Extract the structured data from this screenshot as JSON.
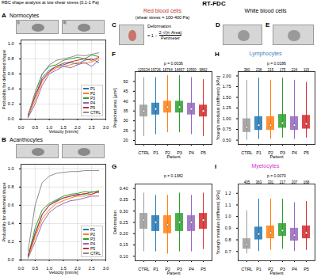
{
  "figure": {
    "left_title": "RBC shape analysis at low shear stress (0.1-1 Pa)",
    "right_title": "RT-FDC",
    "rbc_header": "Red blood cells",
    "shear_note": "(shear stress = 100-400 Pa)",
    "wbc_header": "White blood cells",
    "image_labels": [
      "i)",
      "ii)"
    ],
    "panel_C": {
      "letter": "C",
      "formula": {
        "lhs": "Deformation",
        "prefix": "= 1 −",
        "numerator": "2·√(π·Area)",
        "denominator": "Perimeter"
      }
    },
    "panel_D": {
      "letter": "D"
    },
    "panel_E": {
      "letter": "E"
    }
  },
  "chart_data": [
    {
      "type": "line",
      "panel": "A",
      "title": "Normocytes",
      "x_label": "Velocity [mm/s]",
      "y_label": "Probability for deformed shape",
      "x": [
        0.25,
        0.5,
        0.75,
        1.0,
        1.25,
        1.5,
        1.75,
        2.0,
        2.25,
        2.5,
        2.75
      ],
      "xlim": [
        0,
        3
      ],
      "xticks": [
        {
          "value": 0,
          "label": "0.0"
        },
        0.5,
        {
          "value": 1,
          "label": "1.0"
        },
        1.5,
        {
          "value": 2,
          "label": "2.0"
        },
        2.5,
        {
          "value": 3,
          "label": "3.0"
        }
      ],
      "ylim": [
        0,
        1.05
      ],
      "yticks": [
        {
          "value": 0,
          "label": "0.0"
        },
        0.2,
        0.4,
        0.6,
        0.8,
        {
          "value": 1,
          "label": "1.0"
        }
      ],
      "grid": true,
      "legend": "lower right",
      "series": [
        {
          "name": "P1",
          "color": "#1f77b4",
          "values": [
            0.05,
            0.3,
            0.55,
            0.65,
            0.7,
            0.72,
            0.75,
            0.73,
            0.78,
            0.8,
            0.75
          ]
        },
        {
          "name": "P2",
          "color": "#ff7f0e",
          "values": [
            0.03,
            0.25,
            0.5,
            0.62,
            0.68,
            0.7,
            0.72,
            0.75,
            0.74,
            0.76,
            0.8
          ]
        },
        {
          "name": "P3",
          "color": "#2ca02c",
          "values": [
            0.04,
            0.35,
            0.6,
            0.7,
            0.72,
            0.78,
            0.8,
            0.82,
            0.8,
            0.85,
            0.83
          ]
        },
        {
          "name": "P4",
          "color": "#9467bd",
          "values": [
            0.02,
            0.2,
            0.45,
            0.6,
            0.65,
            0.7,
            0.68,
            0.72,
            0.75,
            0.7,
            0.78
          ]
        },
        {
          "name": "P5",
          "color": "#d62728",
          "values": [
            0.06,
            0.3,
            0.52,
            0.63,
            0.7,
            0.74,
            0.76,
            0.78,
            0.8,
            0.78,
            0.82
          ]
        },
        {
          "name": "CTRL",
          "color": "#8c8c8c",
          "values": [
            0.05,
            0.35,
            0.6,
            0.72,
            0.78,
            0.8,
            0.82,
            0.85,
            0.84,
            0.86,
            0.88
          ]
        }
      ]
    },
    {
      "type": "line",
      "panel": "B",
      "title": "Acanthocytes",
      "x_label": "Velocity [mm/s]",
      "y_label": "Probability for deformed shape",
      "x": [
        0.25,
        0.5,
        0.75,
        1.0,
        1.25,
        1.5,
        1.75,
        2.0,
        2.25,
        2.5,
        2.75
      ],
      "xlim": [
        0,
        3
      ],
      "xticks": [
        {
          "value": 0,
          "label": "0.0"
        },
        0.5,
        {
          "value": 1,
          "label": "1.0"
        },
        1.5,
        {
          "value": 2,
          "label": "2.0"
        },
        2.5,
        {
          "value": 3,
          "label": "3.0"
        }
      ],
      "ylim": [
        0,
        1.05
      ],
      "yticks": [
        {
          "value": 0,
          "label": "0.0"
        },
        0.2,
        0.4,
        0.6,
        0.8,
        {
          "value": 1,
          "label": "1.0"
        }
      ],
      "grid": true,
      "legend": "lower right",
      "series": [
        {
          "name": "P1",
          "color": "#1f77b4",
          "values": [
            0.05,
            0.3,
            0.5,
            0.6,
            0.65,
            0.68,
            0.7,
            0.72,
            0.72,
            0.75,
            0.74
          ]
        },
        {
          "name": "P2",
          "color": "#ff7f0e",
          "values": [
            0.03,
            0.25,
            0.45,
            0.55,
            0.62,
            0.65,
            0.68,
            0.7,
            0.7,
            0.72,
            0.75
          ]
        },
        {
          "name": "P3",
          "color": "#2ca02c",
          "values": [
            0.04,
            0.35,
            0.55,
            0.62,
            0.66,
            0.7,
            0.72,
            0.73,
            0.75,
            0.74,
            0.76
          ]
        },
        {
          "name": "P4",
          "color": "#9467bd",
          "values": [
            0.02,
            0.2,
            0.4,
            0.52,
            0.58,
            0.62,
            0.65,
            0.66,
            0.68,
            0.7,
            0.7
          ]
        },
        {
          "name": "P5",
          "color": "#d62728",
          "values": [
            0.05,
            0.28,
            0.5,
            0.6,
            0.64,
            0.68,
            0.7,
            0.71,
            0.73,
            0.72,
            0.75
          ]
        },
        {
          "name": "CTRL",
          "color": "#8c8c8c",
          "values": [
            0.1,
            0.6,
            0.85,
            0.92,
            0.95,
            0.96,
            0.97,
            0.97,
            0.98,
            0.98,
            0.98
          ]
        }
      ]
    },
    {
      "type": "box",
      "panel": "F",
      "x_label": "Patient",
      "y_label": "Projected area [µm²]",
      "categories": [
        "CTRL",
        "P1",
        "P2",
        "P3",
        "P4",
        "P5"
      ],
      "colors": [
        "#9a9a9a",
        "#1f77b4",
        "#ff7f0e",
        "#2ca02c",
        "#9467bd",
        "#d62728"
      ],
      "values": [
        35,
        36,
        37,
        37,
        36,
        35
      ],
      "q1": [
        32,
        33,
        34,
        34,
        33,
        32
      ],
      "q3": [
        38,
        39,
        40,
        40,
        39,
        38
      ],
      "min": [
        22,
        23,
        24,
        24,
        23,
        22
      ],
      "max": [
        52,
        52,
        53,
        53,
        52,
        51
      ],
      "counts": [
        129134,
        19726,
        18764,
        14657,
        10550,
        9862
      ],
      "annotation": "p = 0.0036",
      "ylim": [
        18,
        55
      ],
      "yticks": [
        20,
        25,
        30,
        35,
        40,
        45,
        50
      ]
    },
    {
      "type": "box",
      "panel": "G",
      "x_label": "Patient",
      "y_label": "Deformation",
      "categories": [
        "CTRL",
        "P1",
        "P2",
        "P3",
        "P4",
        "P5"
      ],
      "colors": [
        "#9a9a9a",
        "#1f77b4",
        "#ff7f0e",
        "#2ca02c",
        "#9467bd",
        "#d62728"
      ],
      "values": [
        0.26,
        0.25,
        0.24,
        0.25,
        0.25,
        0.26
      ],
      "q1": [
        0.22,
        0.21,
        0.2,
        0.21,
        0.21,
        0.22
      ],
      "q3": [
        0.29,
        0.28,
        0.28,
        0.29,
        0.28,
        0.29
      ],
      "min": [
        0.12,
        0.12,
        0.11,
        0.12,
        0.12,
        0.13
      ],
      "max": [
        0.38,
        0.37,
        0.37,
        0.38,
        0.37,
        0.38
      ],
      "annotation": "p = 0.1382",
      "ylim": [
        0.08,
        0.42
      ],
      "yticks": [
        {
          "value": 0.1,
          "label": "0.10"
        },
        0.15,
        {
          "value": 0.2,
          "label": "0.20"
        },
        0.25,
        {
          "value": 0.3,
          "label": "0.30"
        },
        0.35,
        {
          "value": 0.4,
          "label": "0.40"
        }
      ]
    },
    {
      "type": "box",
      "panel": "H",
      "title": "Lymphocytes",
      "x_label": "Patient",
      "y_label": "Young's modulus (stiffness) [kPa]",
      "categories": [
        "CTRL",
        "P1",
        "P2",
        "P3",
        "P4",
        "P5"
      ],
      "colors": [
        "#9a9a9a",
        "#1f77b4",
        "#ff7f0e",
        "#2ca02c",
        "#9467bd",
        "#d62728"
      ],
      "values": [
        0.8,
        0.85,
        0.85,
        0.9,
        0.85,
        0.88
      ],
      "q1": [
        0.68,
        0.73,
        0.73,
        0.78,
        0.73,
        0.76
      ],
      "q3": [
        1.0,
        1.05,
        1.05,
        1.1,
        1.05,
        1.08
      ],
      "min": [
        0.5,
        0.52,
        0.52,
        0.55,
        0.52,
        0.55
      ],
      "max": [
        1.9,
        1.95,
        1.9,
        1.95,
        1.9,
        1.85
      ],
      "counts": [
        380,
        238,
        215,
        175,
        224,
        115
      ],
      "annotation": "p = 0.0186",
      "ylim": [
        0.4,
        2.1
      ],
      "yticks": [
        {
          "value": 0.5,
          "label": "0.50"
        },
        0.75,
        {
          "value": 1,
          "label": "1.00"
        },
        1.25,
        {
          "value": 1.5,
          "label": "1.50"
        },
        1.75,
        {
          "value": 2,
          "label": "2.00"
        }
      ]
    },
    {
      "type": "box",
      "panel": "I",
      "title": "Myelocytes",
      "x_label": "Patient",
      "y_label": "Young's modulus (stiffness) [kPa]",
      "categories": [
        "CTRL",
        "P1",
        "P2",
        "P3",
        "P4",
        "P5"
      ],
      "colors": [
        "#9a9a9a",
        "#1f77b4",
        "#ff7f0e",
        "#2ca02c",
        "#9467bd",
        "#d62728"
      ],
      "values": [
        0.76,
        0.85,
        0.86,
        0.88,
        0.84,
        0.86
      ],
      "q1": [
        0.72,
        0.8,
        0.81,
        0.83,
        0.79,
        0.81
      ],
      "q3": [
        0.81,
        0.91,
        0.92,
        0.94,
        0.9,
        0.92
      ],
      "min": [
        0.68,
        0.7,
        0.71,
        0.72,
        0.7,
        0.71
      ],
      "max": [
        1.05,
        1.15,
        1.15,
        1.15,
        1.12,
        1.13
      ],
      "counts": [
        405,
        363,
        331,
        217,
        207,
        168
      ],
      "annotation": "p = 0.0070",
      "ylim": [
        0.62,
        1.28
      ],
      "yticks": [
        0.7,
        0.8,
        0.9,
        {
          "value": 1,
          "label": "1.0"
        },
        1.1,
        1.2
      ]
    }
  ]
}
